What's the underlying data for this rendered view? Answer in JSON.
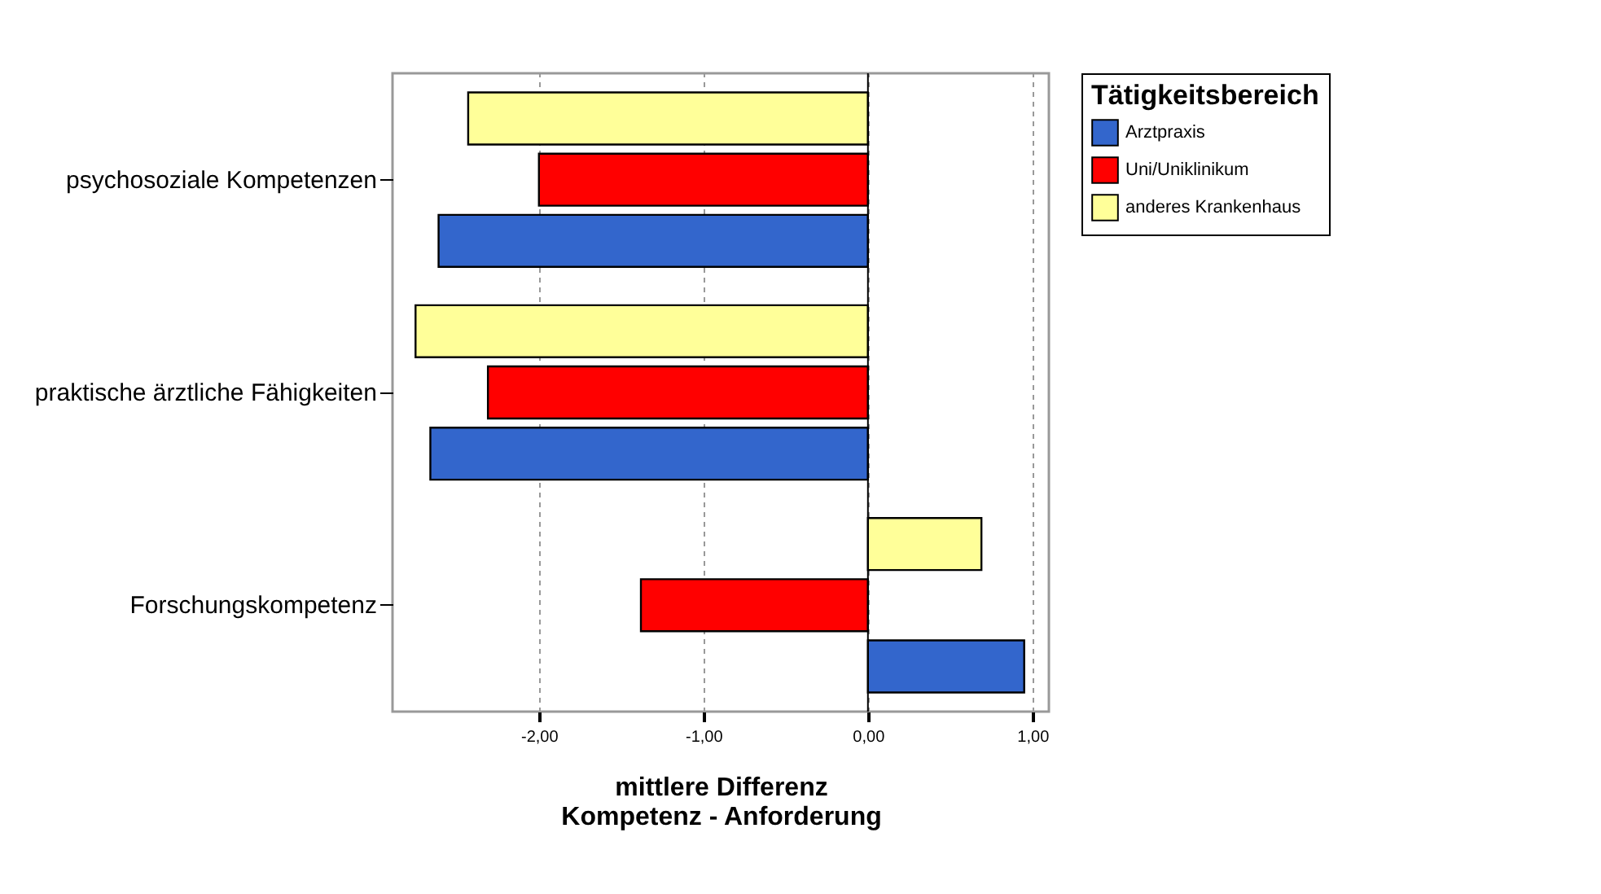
{
  "chart_data": {
    "type": "bar",
    "orientation": "horizontal",
    "categories": [
      "psychosoziale Kompetenzen",
      "praktische ärztliche Fähigkeiten",
      "Forschungskompetenz"
    ],
    "series": [
      {
        "name": "Arztpraxis",
        "color": "#3366cc",
        "values": [
          -2.61,
          -2.66,
          0.95
        ]
      },
      {
        "name": "Uni/Uniklinikum",
        "color": "#ff0000",
        "values": [
          -2.0,
          -2.31,
          -1.38
        ]
      },
      {
        "name": "anderes Krankenhaus",
        "color": "#ffff99",
        "values": [
          -2.43,
          -2.75,
          0.69
        ]
      }
    ],
    "xlim": [
      -2.89,
      1.1
    ],
    "xticks": [
      {
        "value": -2,
        "label": "-2,00"
      },
      {
        "value": -1,
        "label": "-1,00"
      },
      {
        "value": 0,
        "label": "0,00"
      },
      {
        "value": 1,
        "label": "1,00"
      }
    ],
    "xlabel": "mittlere Differenz\nKompetenz - Anforderung",
    "legend_title": "Tätigkeitsbereich",
    "legend": "top right",
    "grid": "x"
  }
}
